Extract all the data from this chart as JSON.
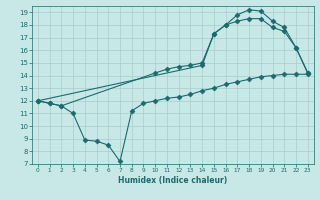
{
  "title": "",
  "xlabel": "Humidex (Indice chaleur)",
  "xlim": [
    -0.5,
    23.5
  ],
  "ylim": [
    7,
    19.5
  ],
  "yticks": [
    7,
    8,
    9,
    10,
    11,
    12,
    13,
    14,
    15,
    16,
    17,
    18,
    19
  ],
  "xticks": [
    0,
    1,
    2,
    3,
    4,
    5,
    6,
    7,
    8,
    9,
    10,
    11,
    12,
    13,
    14,
    15,
    16,
    17,
    18,
    19,
    20,
    21,
    22,
    23
  ],
  "bg_color": "#c8e8e8",
  "line_color": "#1a6b6b",
  "grid_color": "#a8cccc",
  "lines": [
    {
      "x": [
        0,
        1,
        2,
        3,
        4,
        5,
        6,
        7,
        8,
        9,
        10,
        11,
        12,
        13,
        14,
        15,
        16,
        17,
        18,
        19,
        20,
        21,
        22,
        23
      ],
      "y": [
        12,
        11.8,
        11.6,
        11.0,
        8.9,
        8.8,
        8.5,
        7.2,
        11.2,
        11.8,
        12.0,
        12.2,
        12.3,
        12.5,
        12.8,
        13.0,
        13.3,
        13.5,
        13.7,
        13.9,
        14.0,
        14.1,
        14.1,
        14.1
      ],
      "marker": "D",
      "markersize": 2.5,
      "has_markers": true
    },
    {
      "x": [
        0,
        1,
        2,
        10,
        11,
        12,
        13,
        14,
        15,
        16,
        17,
        18,
        19,
        20,
        21,
        22,
        23
      ],
      "y": [
        12,
        11.8,
        11.6,
        14.2,
        14.5,
        14.7,
        14.8,
        15.0,
        17.3,
        18.0,
        18.3,
        18.5,
        18.5,
        17.8,
        17.5,
        16.2,
        14.2
      ],
      "marker": "D",
      "markersize": 2.5,
      "has_markers": true
    },
    {
      "x": [
        0,
        14,
        15,
        16,
        17,
        18,
        19,
        20,
        21,
        22,
        23
      ],
      "y": [
        12,
        14.8,
        17.3,
        18.0,
        18.8,
        19.2,
        19.1,
        18.3,
        17.8,
        16.2,
        14.2
      ],
      "marker": "D",
      "markersize": 2.5,
      "has_markers": true
    }
  ]
}
